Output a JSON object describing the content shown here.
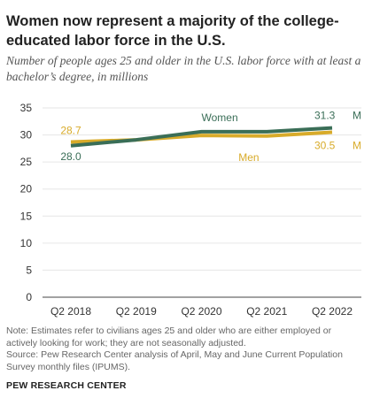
{
  "title": "Women now represent a majority of the college-educated labor force in the U.S.",
  "subtitle": "Number of people ages 25 and older in the U.S. labor force with at least a bachelor’s degree, in millions",
  "note": "Note: Estimates refer to civilians ages 25 and older who are either employed or actively looking for work; they are not seasonally adjusted.",
  "source": "Source: Pew Research Center analysis of April, May and June Current Population Survey monthly files (IPUMS).",
  "org": "PEW RESEARCH CENTER",
  "colors": {
    "women": "#3a6e57",
    "men": "#d8ab2a",
    "axis": "#444444",
    "grid": "#e6e6e6",
    "tick_text": "#333333"
  },
  "chart_data": {
    "type": "line",
    "categories": [
      "Q2 2018",
      "Q2 2019",
      "Q2 2020",
      "Q2 2021",
      "Q2 2022"
    ],
    "ylim": [
      0,
      35
    ],
    "yticks": [
      0,
      5,
      10,
      15,
      20,
      25,
      30,
      35
    ],
    "series": [
      {
        "name": "Women",
        "key": "women",
        "values": [
          28.0,
          29.1,
          30.6,
          30.6,
          31.3
        ]
      },
      {
        "name": "Men",
        "key": "men",
        "values": [
          28.7,
          29.1,
          29.9,
          29.8,
          30.5
        ]
      }
    ],
    "annotations": {
      "women_start": "28.0",
      "men_start": "28.7",
      "women_end": "31.3",
      "men_end": "30.5",
      "unit": "M"
    }
  }
}
